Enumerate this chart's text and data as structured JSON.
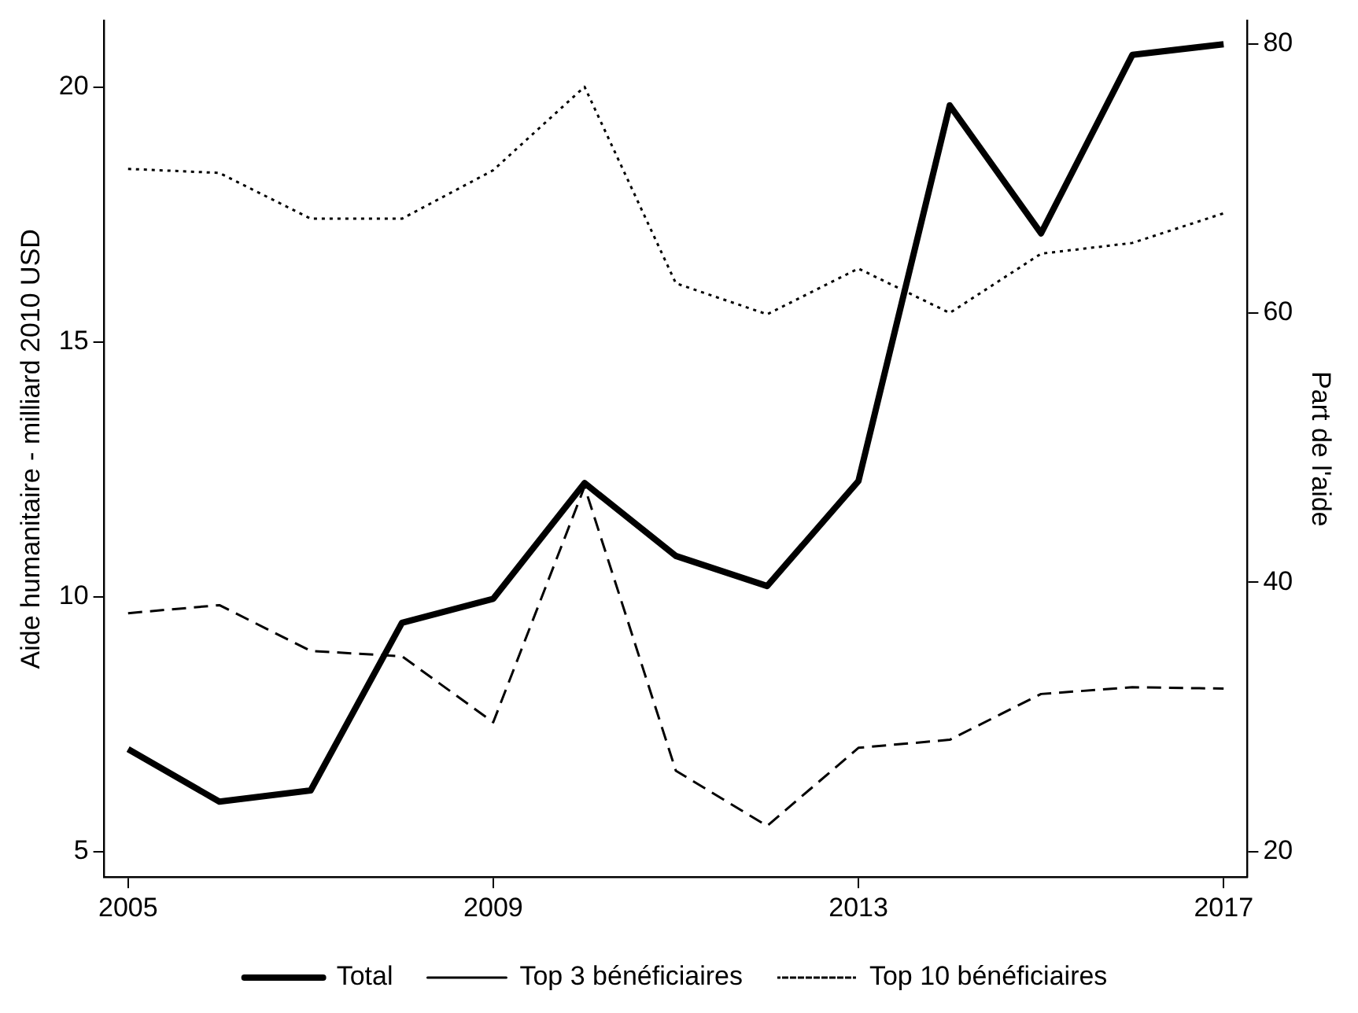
{
  "chart_data": {
    "type": "line",
    "ylabel": "Aide humanitaire - milliard 2010 USD",
    "y2label": "Part de l'aide",
    "x": [
      2005,
      2006,
      2007,
      2008,
      2009,
      2010,
      2011,
      2012,
      2013,
      2014,
      2015,
      2016,
      2017
    ],
    "series": [
      {
        "name": "Total",
        "color": "#000000",
        "line_style": "solid",
        "values": [
          7.01,
          5.98,
          6.2,
          9.49,
          9.96,
          12.23,
          10.8,
          10.21,
          12.27,
          19.64,
          17.13,
          20.63,
          20.84
        ]
      },
      {
        "name": "Top 3 bénéficiaires",
        "color": "#000000",
        "line_style": "dashed",
        "axis": "y2",
        "values": [
          37.7,
          38.3,
          34.9,
          34.5,
          29.6,
          47.1,
          26.0,
          21.9,
          27.7,
          28.3,
          31.7,
          32.2,
          32.1
        ]
      },
      {
        "name": "Top 10 bénéficiaires",
        "color": "#000000",
        "line_style": "dotted",
        "axis": "y2",
        "values": [
          70.7,
          70.4,
          67.0,
          67.0,
          70.6,
          76.8,
          62.2,
          59.9,
          63.3,
          60.0,
          64.4,
          65.2,
          67.4
        ]
      }
    ],
    "xlim": [
      2004.74,
      2017.26
    ],
    "xticks": [
      2005,
      2009,
      2013,
      2017
    ],
    "ylim": [
      4.5,
      21.3
    ],
    "yticks": [
      5,
      10,
      15,
      20
    ],
    "y2lim": [
      18.1,
      81.7
    ],
    "y2ticks": [
      20,
      40,
      60,
      80
    ],
    "grid": false,
    "legend": "bottom",
    "marker": "none"
  }
}
